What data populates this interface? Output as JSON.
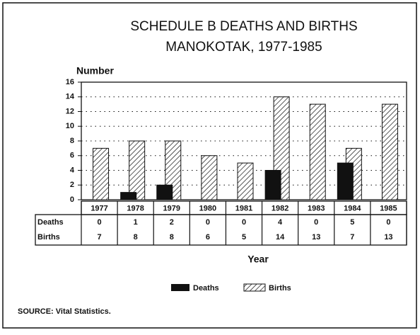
{
  "chart_data": {
    "type": "bar",
    "title": "SCHEDULE B DEATHS AND BIRTHS",
    "subtitle": "MANOKOTAK, 1977-1985",
    "ylabel": "Number",
    "xlabel": "Year",
    "source": "SOURCE:  Vital Statistics.",
    "categories": [
      "1977",
      "1978",
      "1979",
      "1980",
      "1981",
      "1982",
      "1983",
      "1984",
      "1985"
    ],
    "series": [
      {
        "name": "Deaths",
        "color": "#111111",
        "values": [
          0,
          1,
          2,
          0,
          0,
          4,
          0,
          5,
          0
        ]
      },
      {
        "name": "Births",
        "color": "#111111",
        "pattern": "hatch",
        "values": [
          7,
          8,
          8,
          6,
          5,
          14,
          13,
          7,
          13
        ]
      }
    ],
    "ylim": [
      0,
      16
    ],
    "yticks": [
      0,
      2,
      4,
      6,
      8,
      10,
      12,
      14,
      16
    ],
    "grid": true
  }
}
